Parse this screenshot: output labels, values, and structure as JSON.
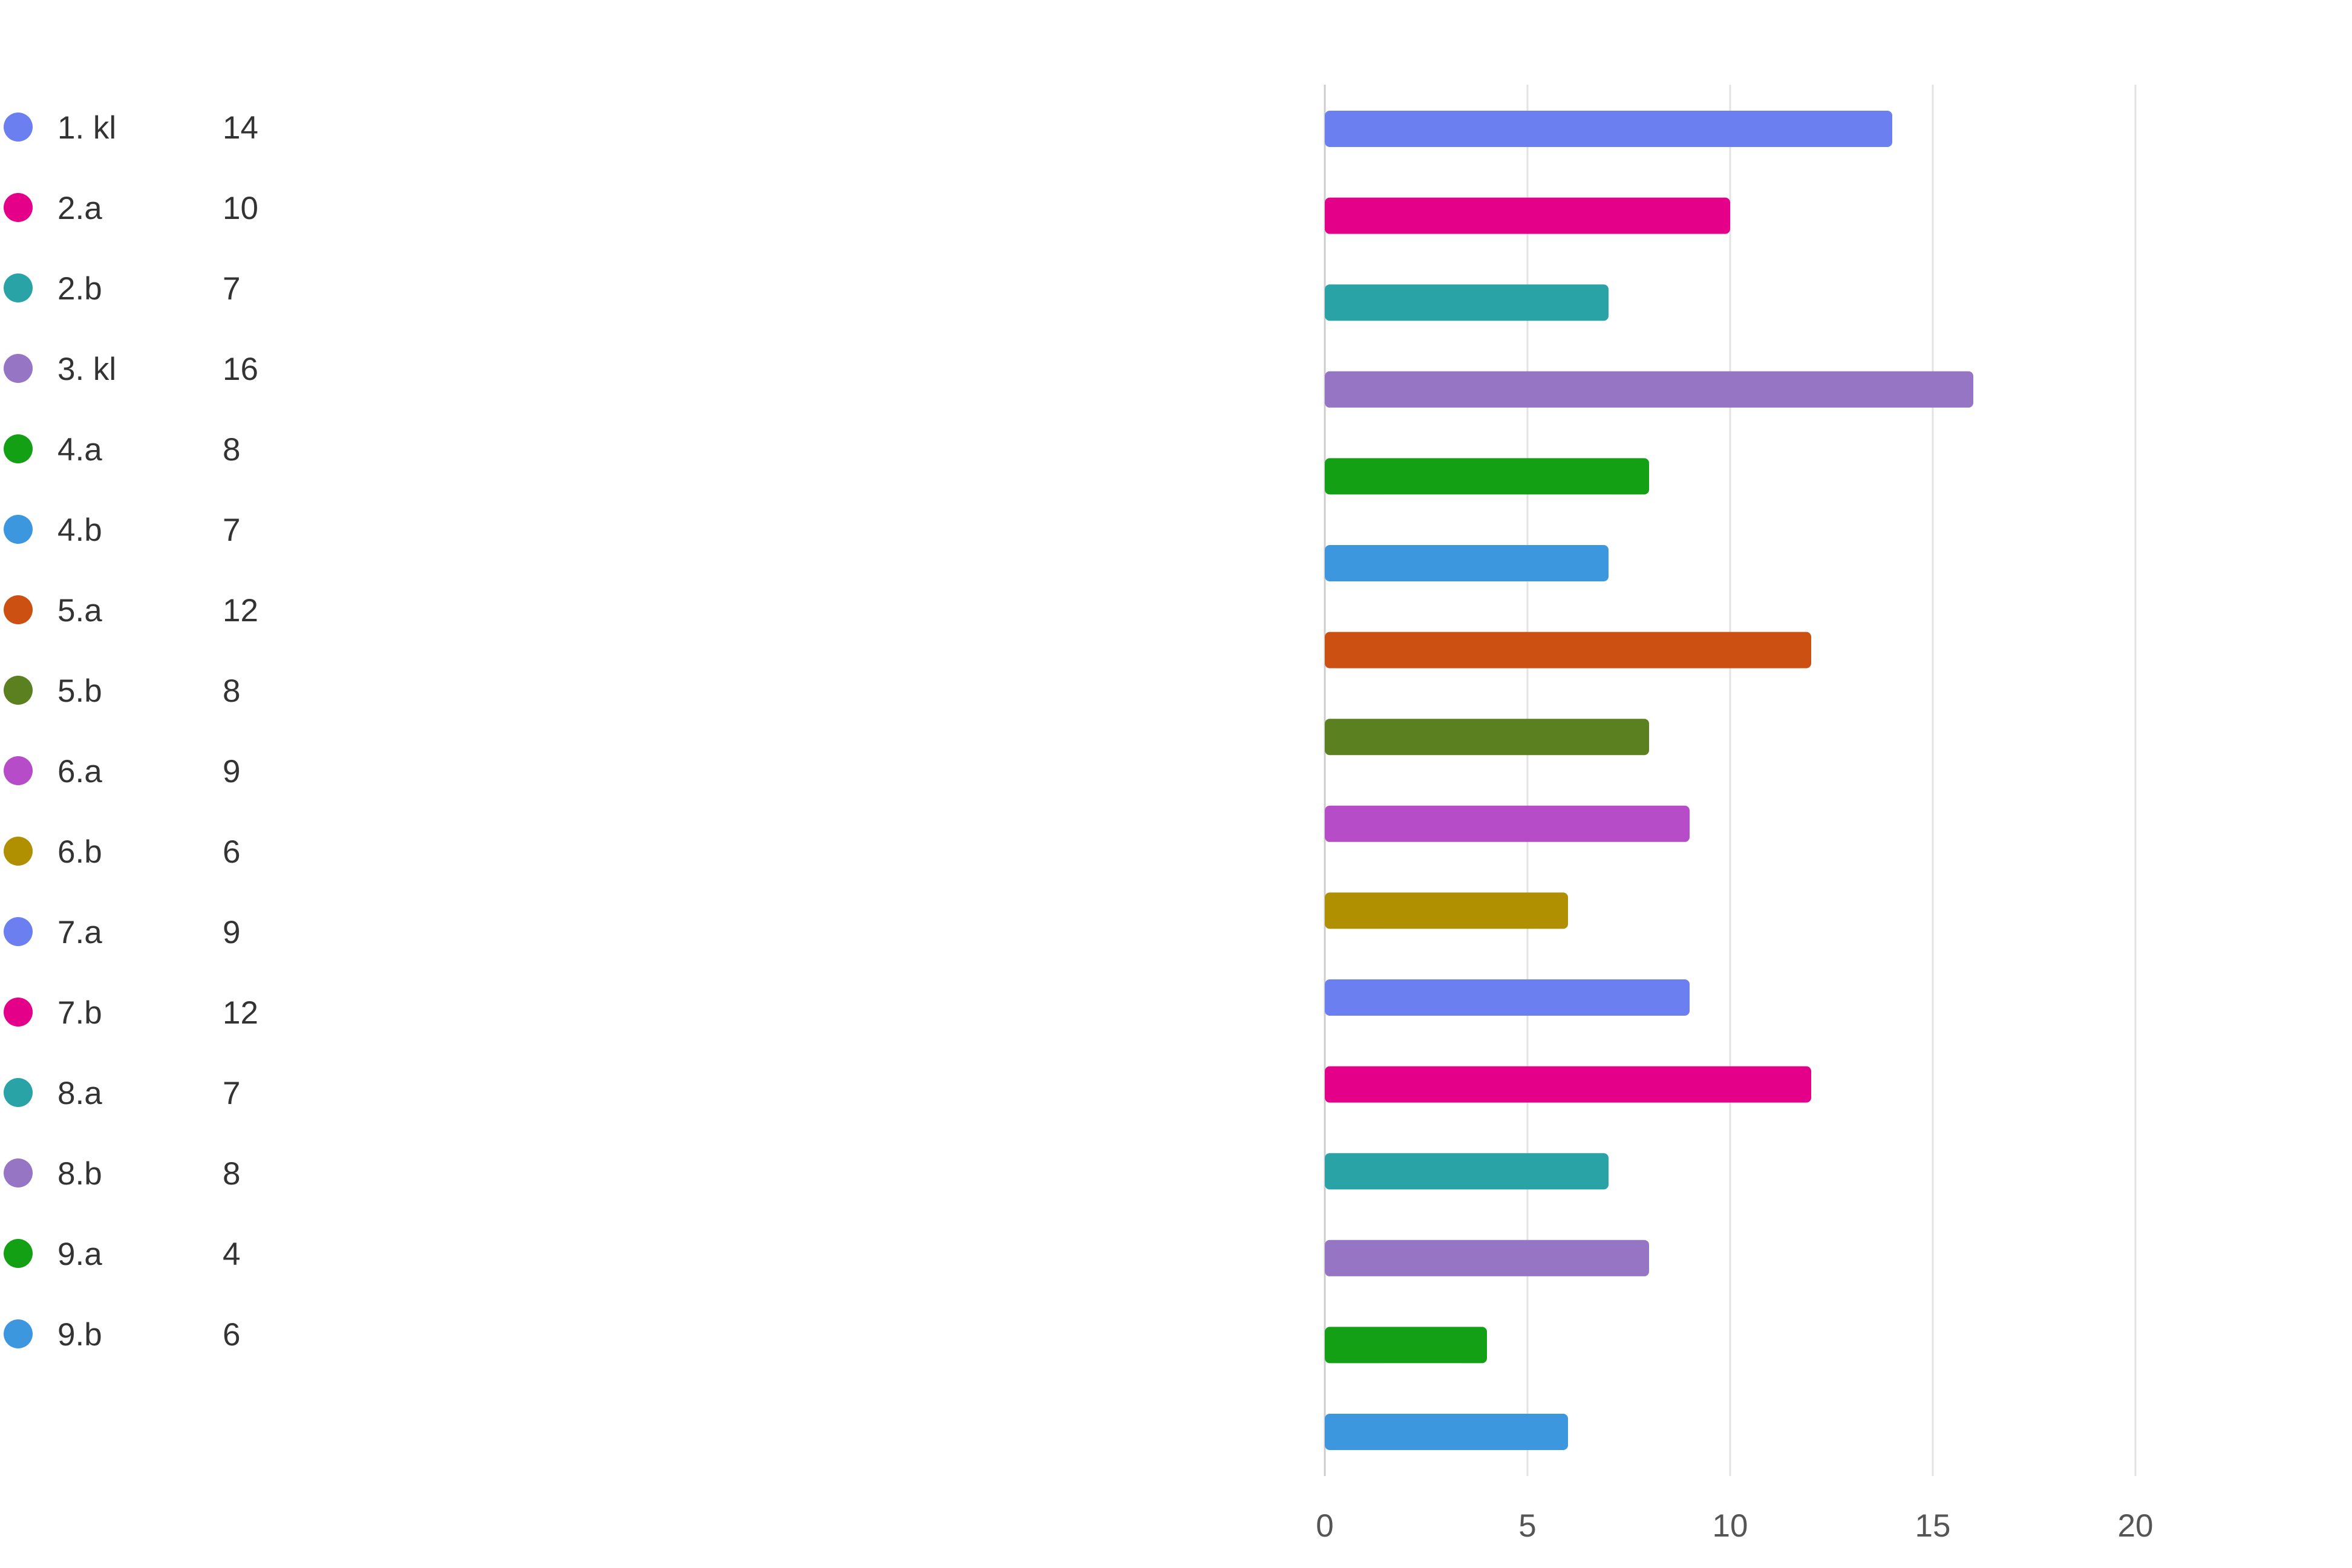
{
  "chart_data": {
    "type": "bar",
    "orientation": "horizontal",
    "categories": [
      "1. kl",
      "2.a",
      "2.b",
      "3. kl",
      "4.a",
      "4.b",
      "5.a",
      "5.b",
      "6.a",
      "6.b",
      "7.a",
      "7.b",
      "8.a",
      "8.b",
      "9.a",
      "9.b"
    ],
    "legend_values": [
      14,
      10,
      7,
      16,
      8,
      7,
      12,
      8,
      9,
      6,
      9,
      12,
      7,
      8,
      4,
      6
    ],
    "bar_values": [
      14,
      10,
      7,
      16,
      8,
      7,
      12,
      8,
      9,
      6,
      9,
      12,
      7,
      8,
      4,
      6
    ],
    "colors": [
      "#6b7ff0",
      "#e5008a",
      "#2aa3a6",
      "#9575c4",
      "#14a014",
      "#3d97df",
      "#cc5012",
      "#5a8020",
      "#b64cc7",
      "#b09000",
      "#6b7ff0",
      "#e5008a",
      "#2aa3a6",
      "#9575c4",
      "#14a014",
      "#3d97df"
    ],
    "xlim": [
      0,
      20
    ],
    "x_ticks": [
      0,
      5,
      10,
      15,
      20
    ],
    "grid": true,
    "legend_position": "left",
    "title": "",
    "xlabel": "",
    "ylabel": ""
  }
}
